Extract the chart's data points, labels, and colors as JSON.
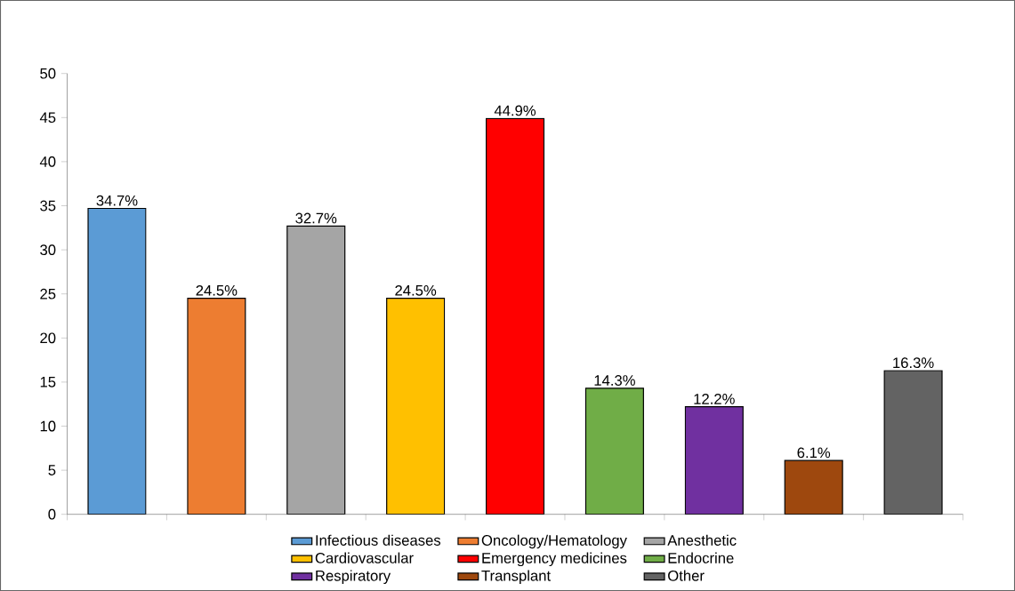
{
  "chart_data": {
    "type": "bar",
    "categories": [
      null,
      null,
      null,
      null,
      null,
      null,
      null,
      null,
      null
    ],
    "series": [
      {
        "name": "Infectious diseases",
        "color": "#5b9bd5",
        "values": [
          34.7,
          null,
          null,
          null,
          null,
          null,
          null,
          null,
          null
        ],
        "value_labels": [
          "34.7%",
          null,
          null,
          null,
          null,
          null,
          null,
          null,
          null
        ]
      },
      {
        "name": "Oncology/Hematology",
        "color": "#ed7d31",
        "values": [
          null,
          24.5,
          null,
          null,
          null,
          null,
          null,
          null,
          null
        ],
        "value_labels": [
          null,
          "24.5%",
          null,
          null,
          null,
          null,
          null,
          null,
          null
        ]
      },
      {
        "name": "Anesthetic",
        "color": "#a5a5a5",
        "values": [
          null,
          null,
          32.7,
          null,
          null,
          null,
          null,
          null,
          null
        ],
        "value_labels": [
          null,
          null,
          "32.7%",
          null,
          null,
          null,
          null,
          null,
          null
        ]
      },
      {
        "name": "Cardiovascular",
        "color": "#ffc000",
        "values": [
          null,
          null,
          null,
          24.5,
          null,
          null,
          null,
          null,
          null
        ],
        "value_labels": [
          null,
          null,
          null,
          "24.5%",
          null,
          null,
          null,
          null,
          null
        ]
      },
      {
        "name": "Emergency medicines",
        "color": "#ff0000",
        "values": [
          null,
          null,
          null,
          null,
          44.9,
          null,
          null,
          null,
          null
        ],
        "value_labels": [
          null,
          null,
          null,
          null,
          "44.9%",
          null,
          null,
          null,
          null
        ]
      },
      {
        "name": "Endocrine",
        "color": "#70ad47",
        "values": [
          null,
          null,
          null,
          null,
          null,
          14.3,
          null,
          null,
          null
        ],
        "value_labels": [
          null,
          null,
          null,
          null,
          null,
          "14.3%",
          null,
          null,
          null
        ]
      },
      {
        "name": "Respiratory",
        "color": "#7030a0",
        "values": [
          null,
          null,
          null,
          null,
          null,
          null,
          12.2,
          null,
          null
        ],
        "value_labels": [
          null,
          null,
          null,
          null,
          null,
          null,
          "12.2%",
          null,
          null
        ]
      },
      {
        "name": "Transplant",
        "color": "#9e480e",
        "values": [
          null,
          null,
          null,
          null,
          null,
          null,
          null,
          6.1,
          null
        ],
        "value_labels": [
          null,
          null,
          null,
          null,
          null,
          null,
          null,
          "6.1%",
          null
        ]
      },
      {
        "name": "Other",
        "color": "#636363",
        "values": [
          null,
          null,
          null,
          null,
          null,
          null,
          null,
          null,
          16.3
        ],
        "value_labels": [
          null,
          null,
          null,
          null,
          null,
          null,
          null,
          null,
          "16.3%"
        ]
      }
    ],
    "ylim": [
      0,
      50
    ],
    "yticks": [
      0,
      5,
      10,
      15,
      20,
      25,
      30,
      35,
      40,
      45,
      50
    ],
    "tick_labels": "y",
    "legend": "bottom",
    "grid": false
  }
}
